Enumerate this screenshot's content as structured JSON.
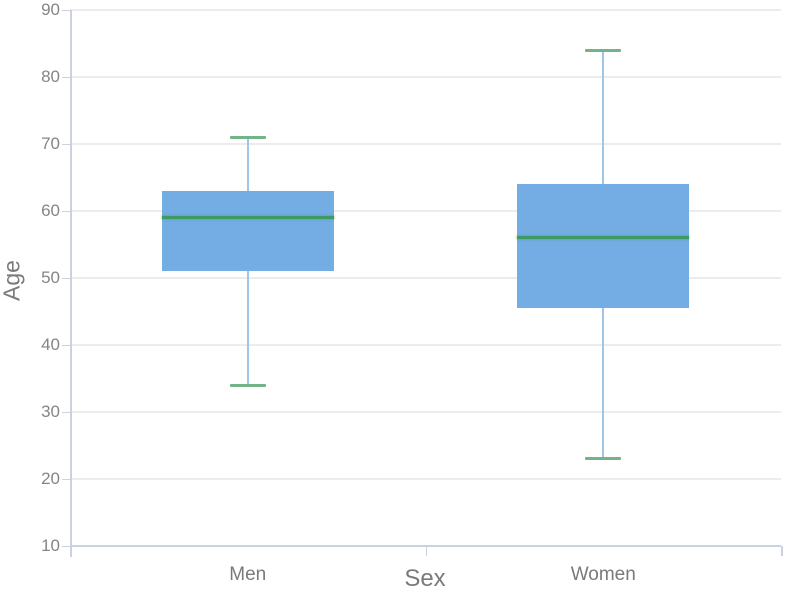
{
  "chart_data": {
    "type": "boxplot",
    "title": "",
    "xlabel": "Sex",
    "ylabel": "Age",
    "ylim": [
      10,
      90
    ],
    "yticks": [
      90,
      80,
      70,
      60,
      50,
      40,
      30,
      20,
      10
    ],
    "grid": true,
    "legend": "none",
    "categories": [
      "Men",
      "Women"
    ],
    "series": [
      {
        "name": "Men",
        "whisker_low": 34,
        "q1": 51,
        "median": 59,
        "q3": 63,
        "whisker_high": 71
      },
      {
        "name": "Women",
        "whisker_low": 23,
        "q1": 45.5,
        "median": 56,
        "q3": 64,
        "whisker_high": 84
      }
    ],
    "colors": {
      "box_fill": "#74ACE4",
      "median_line": "#3C9A62",
      "whisker_line": "#9FC6E8",
      "whisker_cap": "#74B287",
      "gridline": "#ECECEE",
      "axis_line": "#CBD1DE",
      "tick_text": "#858585",
      "label_text": "#7A7A7A"
    }
  }
}
